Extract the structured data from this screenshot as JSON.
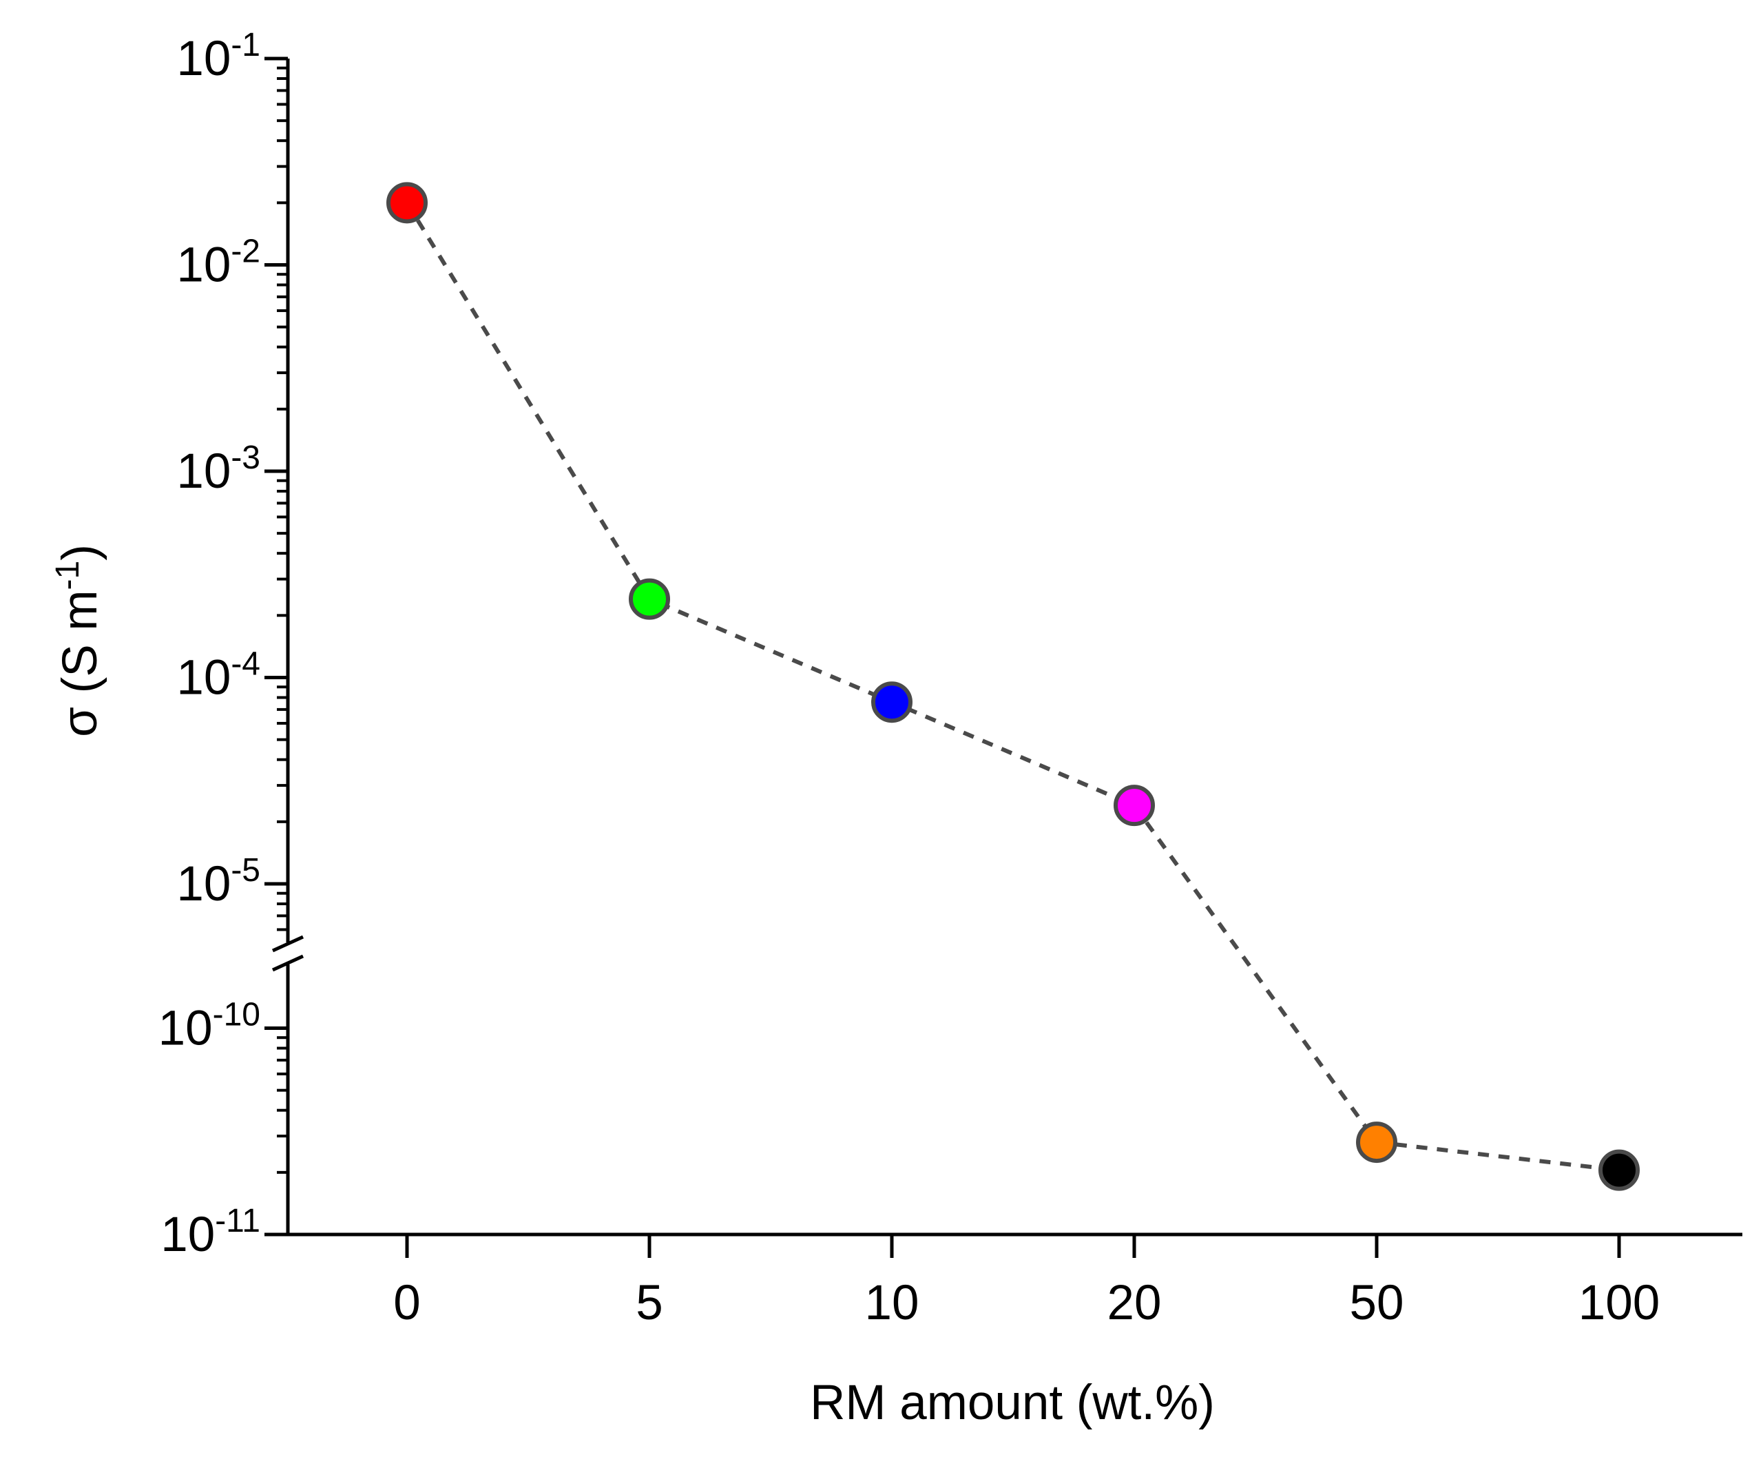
{
  "chart_data": {
    "type": "scatter",
    "xlabel": "RM amount (wt.%)",
    "ylabel": "σ (S m-1)",
    "ylabel_parts": {
      "base": "σ (S m",
      "exp": "-1",
      "close": ")"
    },
    "y_scale": "log (broken axis)",
    "ylim_upper": [
      1e-06,
      0.1
    ],
    "ylim_lower": [
      1e-11,
      3e-10
    ],
    "x_categories": [
      "0",
      "5",
      "10",
      "20",
      "50",
      "100"
    ],
    "y_ticks_upper": [
      {
        "value": 0.1,
        "base": "10",
        "exp": "-1"
      },
      {
        "value": 0.01,
        "base": "10",
        "exp": "-2"
      },
      {
        "value": 0.001,
        "base": "10",
        "exp": "-3"
      },
      {
        "value": 0.0001,
        "base": "10",
        "exp": "-4"
      },
      {
        "value": 1e-05,
        "base": "10",
        "exp": "-5"
      }
    ],
    "y_ticks_lower": [
      {
        "value": 1e-10,
        "base": "10",
        "exp": "-10"
      },
      {
        "value": 1e-11,
        "base": "10",
        "exp": "-11"
      }
    ],
    "series": [
      {
        "x": [
          "0",
          "5",
          "10",
          "20",
          "50",
          "100"
        ],
        "y": [
          0.02,
          0.00024,
          7.6e-05,
          2.4e-05,
          2.8e-11,
          2.05e-11
        ],
        "colors": [
          "#ff0000",
          "#00ff00",
          "#0000ff",
          "#ff00ff",
          "#ff8000",
          "#000000"
        ]
      }
    ],
    "line_style": "dashed",
    "line_color": "#4a4a4a",
    "grid": false,
    "legend": "none"
  }
}
